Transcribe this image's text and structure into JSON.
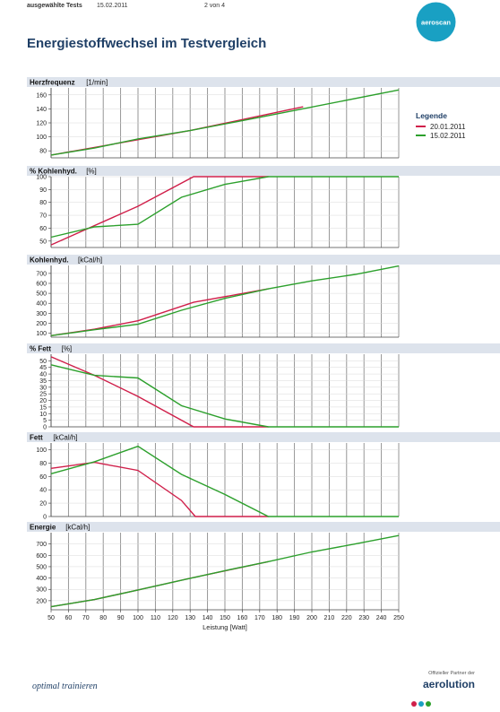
{
  "header": {
    "doc_label": "ausgewählte Tests",
    "date": "15.02.2011",
    "page": "2 von 4"
  },
  "logo": {
    "text": "aeroscan",
    "color": "#19a0c3"
  },
  "title": "Energiestoffwechsel im Testvergleich",
  "legend": {
    "title": "Legende",
    "items": [
      {
        "label": "20.01.2011",
        "color": "#d01f4a"
      },
      {
        "label": "15.02.2011",
        "color": "#2ca02c"
      }
    ]
  },
  "footer": {
    "tagline": "optimal trainieren",
    "partner_text": "Offizieller Partner der",
    "partner_brand": "aerolution"
  },
  "chart_data": [
    {
      "type": "line",
      "title": "Herzfrequenz",
      "unit": "[1/min]",
      "xlabel": "",
      "ylim": [
        70,
        170
      ],
      "yticks": [
        80,
        100,
        120,
        140,
        160
      ],
      "series": [
        {
          "name": "20.01.2011",
          "x": [
            50,
            130,
            195
          ],
          "y": [
            74,
            109,
            143
          ]
        },
        {
          "name": "15.02.2011",
          "x": [
            50,
            75,
            100,
            130,
            170,
            250
          ],
          "y": [
            74,
            84,
            97,
            109,
            128,
            167
          ]
        }
      ]
    },
    {
      "type": "line",
      "title": "% Kohlenhyd.",
      "unit": "[%]",
      "xlabel": "",
      "ylim": [
        45,
        100
      ],
      "yticks": [
        50,
        60,
        70,
        80,
        90,
        100
      ],
      "series": [
        {
          "name": "20.01.2011",
          "x": [
            50,
            100,
            132,
            175
          ],
          "y": [
            47,
            77,
            100,
            100
          ]
        },
        {
          "name": "15.02.2011",
          "x": [
            50,
            75,
            100,
            125,
            150,
            175,
            250
          ],
          "y": [
            53,
            61,
            63,
            84,
            94,
            100,
            100
          ]
        }
      ]
    },
    {
      "type": "line",
      "title": "Kohlenhyd.",
      "unit": "[kCal/h]",
      "xlabel": "",
      "ylim": [
        60,
        780
      ],
      "yticks": [
        100,
        200,
        300,
        400,
        500,
        600,
        700
      ],
      "series": [
        {
          "name": "20.01.2011",
          "x": [
            50,
            75,
            100,
            132,
            175
          ],
          "y": [
            75,
            140,
            225,
            410,
            545
          ]
        },
        {
          "name": "15.02.2011",
          "x": [
            50,
            75,
            100,
            125,
            150,
            175,
            200,
            225,
            250
          ],
          "y": [
            75,
            135,
            190,
            330,
            450,
            545,
            625,
            690,
            775
          ]
        }
      ]
    },
    {
      "type": "line",
      "title": "% Fett",
      "unit": "[%]",
      "xlabel": "",
      "ylim": [
        0,
        55
      ],
      "yticks": [
        0,
        5,
        10,
        15,
        20,
        25,
        30,
        35,
        40,
        45,
        50
      ],
      "series": [
        {
          "name": "20.01.2011",
          "x": [
            50,
            75,
            100,
            132,
            175
          ],
          "y": [
            53,
            39,
            23,
            0,
            0
          ]
        },
        {
          "name": "15.02.2011",
          "x": [
            50,
            75,
            100,
            125,
            150,
            175,
            250
          ],
          "y": [
            47,
            39,
            37,
            16,
            6,
            0,
            0
          ]
        }
      ]
    },
    {
      "type": "line",
      "title": "Fett",
      "unit": "[kCal/h]",
      "xlabel": "",
      "ylim": [
        0,
        110
      ],
      "yticks": [
        0,
        20,
        40,
        60,
        80,
        100
      ],
      "series": [
        {
          "name": "20.01.2011",
          "x": [
            50,
            75,
            100,
            125,
            133,
            175
          ],
          "y": [
            72,
            81,
            69,
            24,
            0,
            0
          ]
        },
        {
          "name": "15.02.2011",
          "x": [
            50,
            75,
            100,
            125,
            150,
            175,
            250
          ],
          "y": [
            64,
            82,
            105,
            63,
            33,
            0,
            0
          ]
        }
      ]
    },
    {
      "type": "line",
      "title": "Energie",
      "unit": "[kCal/h]",
      "xlabel": "Leistung [Watt]",
      "ylim": [
        120,
        800
      ],
      "yticks": [
        200,
        300,
        400,
        500,
        600,
        700
      ],
      "xticks": [
        50,
        60,
        70,
        80,
        90,
        100,
        110,
        120,
        130,
        140,
        150,
        160,
        170,
        180,
        190,
        200,
        210,
        220,
        230,
        240,
        250
      ],
      "series": [
        {
          "name": "20.01.2011",
          "x": [
            50,
            75,
            100,
            132,
            175
          ],
          "y": [
            147,
            210,
            295,
            405,
            545
          ]
        },
        {
          "name": "15.02.2011",
          "x": [
            50,
            75,
            100,
            125,
            150,
            175,
            200,
            225,
            250
          ],
          "y": [
            147,
            210,
            295,
            380,
            465,
            545,
            630,
            700,
            775
          ]
        }
      ]
    }
  ]
}
